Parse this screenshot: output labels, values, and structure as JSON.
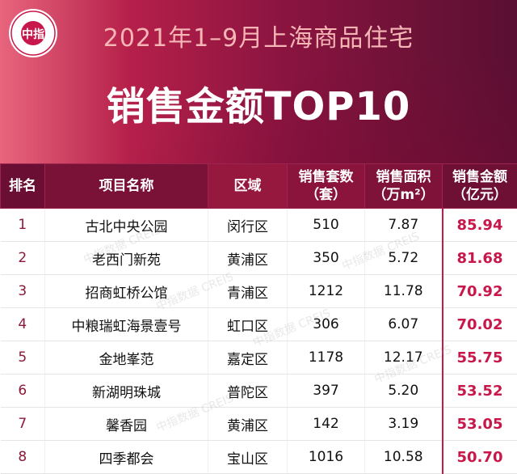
{
  "header": {
    "title_line1": "2021年1–9月上海商品住宅",
    "title_line2": "销售金额TOP10",
    "logo": {
      "center_text": "中指",
      "ring_text": "CHINA INDEX ACADEMY",
      "bottom_text": "研究院"
    }
  },
  "table": {
    "columns": [
      {
        "line1": "排名",
        "line2": ""
      },
      {
        "line1": "项目名称",
        "line2": ""
      },
      {
        "line1": "区域",
        "line2": ""
      },
      {
        "line1": "销售套数",
        "line2": "（套）"
      },
      {
        "line1": "销售面积",
        "line2": "（万m²）"
      },
      {
        "line1": "销售金额",
        "line2": "（亿元）"
      }
    ],
    "rows": [
      {
        "rank": "1",
        "name": "古北中央公园",
        "district": "闵行区",
        "units": "510",
        "area": "7.87",
        "amount": "85.94"
      },
      {
        "rank": "2",
        "name": "老西门新苑",
        "district": "黄浦区",
        "units": "350",
        "area": "5.72",
        "amount": "81.68"
      },
      {
        "rank": "3",
        "name": "招商虹桥公馆",
        "district": "青浦区",
        "units": "1212",
        "area": "11.78",
        "amount": "70.92"
      },
      {
        "rank": "4",
        "name": "中粮瑞虹海景壹号",
        "district": "虹口区",
        "units": "306",
        "area": "6.07",
        "amount": "70.02"
      },
      {
        "rank": "5",
        "name": "金地峯范",
        "district": "嘉定区",
        "units": "1178",
        "area": "12.17",
        "amount": "55.75"
      },
      {
        "rank": "6",
        "name": "新湖明珠城",
        "district": "普陀区",
        "units": "397",
        "area": "5.20",
        "amount": "53.52"
      },
      {
        "rank": "7",
        "name": "馨香园",
        "district": "黄浦区",
        "units": "142",
        "area": "3.19",
        "amount": "53.05"
      },
      {
        "rank": "8",
        "name": "四季都会",
        "district": "宝山区",
        "units": "1016",
        "area": "10.58",
        "amount": "50.70"
      }
    ]
  },
  "watermark": {
    "text": "中指数据 CREIS"
  },
  "colors": {
    "accent": "#c8174a",
    "header_dark": "#6a0f33",
    "header_light": "#e8657d"
  }
}
